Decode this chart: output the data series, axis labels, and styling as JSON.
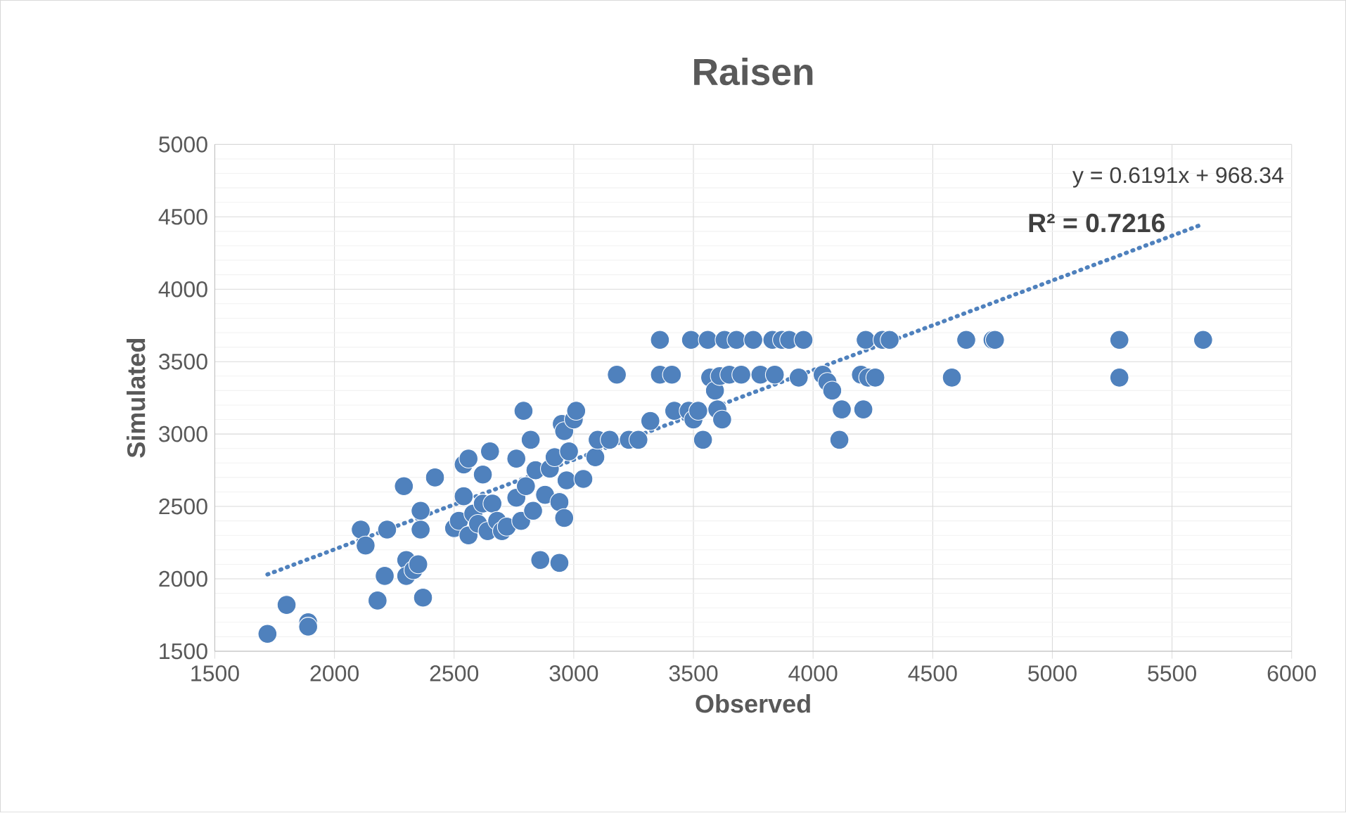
{
  "chart_data": {
    "type": "scatter",
    "title": "Raisen",
    "xlabel": "Observed",
    "ylabel": "Simulated",
    "xlim": [
      1500,
      6000
    ],
    "xticks": [
      1500,
      2000,
      2500,
      3000,
      3500,
      4000,
      4500,
      5000,
      5500,
      6000
    ],
    "ylim": [
      1500,
      5000
    ],
    "yticks": [
      1500,
      2000,
      2500,
      3000,
      3500,
      4000,
      4500,
      5000
    ],
    "grid": true,
    "annotations": [
      "y = 0.6191x + 968.34",
      "R² = 0.7216"
    ],
    "series": [
      {
        "color": "#4f81bd",
        "marker": "circle",
        "x": [
          1720,
          1800,
          1890,
          1890,
          2180,
          2110,
          2130,
          2210,
          2220,
          2290,
          2300,
          2300,
          2330,
          2350,
          2360,
          2360,
          2370,
          2420,
          2500,
          2520,
          2540,
          2540,
          2560,
          2560,
          2580,
          2600,
          2620,
          2620,
          2640,
          2650,
          2660,
          2680,
          2700,
          2720,
          2760,
          2760,
          2780,
          2790,
          2800,
          2820,
          2830,
          2840,
          2860,
          2880,
          2900,
          2920,
          2940,
          2940,
          2950,
          2960,
          2960,
          2970,
          2980,
          3000,
          3010,
          3040,
          3090,
          3100,
          3150,
          3180,
          3230,
          3270,
          3320,
          3360,
          3360,
          3410,
          3420,
          3480,
          3490,
          3500,
          3520,
          3540,
          3560,
          3570,
          3590,
          3600,
          3610,
          3620,
          3630,
          3650,
          3680,
          3700,
          3750,
          3780,
          3830,
          3840,
          3870,
          3900,
          3940,
          3960,
          4040,
          4060,
          4080,
          4110,
          4120,
          4200,
          4210,
          4220,
          4230,
          4260,
          4290,
          4320,
          4580,
          4640,
          4750,
          4760,
          5280,
          5280,
          5630
        ],
        "values": [
          1620,
          1820,
          1700,
          1670,
          1850,
          2340,
          2230,
          2020,
          2340,
          2640,
          2130,
          2020,
          2060,
          2100,
          2340,
          2470,
          1870,
          2700,
          2350,
          2400,
          2570,
          2790,
          2830,
          2300,
          2450,
          2380,
          2520,
          2720,
          2330,
          2880,
          2520,
          2400,
          2330,
          2360,
          2560,
          2830,
          2400,
          3160,
          2640,
          2960,
          2470,
          2750,
          2130,
          2580,
          2760,
          2840,
          2110,
          2530,
          3070,
          3020,
          2420,
          2680,
          2880,
          3100,
          3160,
          2690,
          2840,
          2960,
          2960,
          3410,
          2960,
          2960,
          3090,
          3650,
          3410,
          3410,
          3160,
          3160,
          3650,
          3100,
          3160,
          2960,
          3650,
          3390,
          3300,
          3170,
          3400,
          3100,
          3650,
          3410,
          3650,
          3410,
          3650,
          3410,
          3650,
          3410,
          3650,
          3650,
          3390,
          3650,
          3410,
          3360,
          3300,
          2960,
          3170,
          3410,
          3170,
          3650,
          3390,
          3390,
          3650,
          3650,
          3390,
          3650,
          3650,
          3650,
          3650,
          3390,
          3650
        ]
      },
      {
        "type": "line",
        "color": "#4f81bd",
        "marker": "none",
        "line_style": "dotted",
        "x": [
          1720,
          5630
        ],
        "values": [
          2030,
          4450
        ]
      }
    ]
  }
}
